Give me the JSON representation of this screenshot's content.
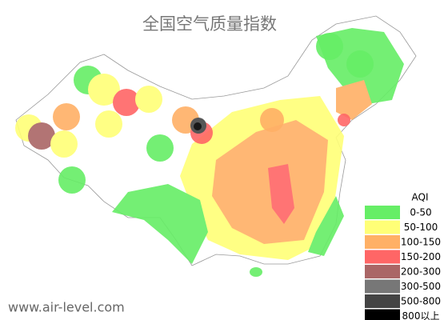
{
  "title": "全国空气质量指数",
  "legend": {
    "title": "AQI",
    "items": [
      {
        "label": "0-50",
        "color": "#66ee66"
      },
      {
        "label": "50-100",
        "color": "#ffff77"
      },
      {
        "label": "100-150",
        "color": "#ffb066"
      },
      {
        "label": "150-200",
        "color": "#ff6666"
      },
      {
        "label": "200-300",
        "color": "#aa6666"
      },
      {
        "label": "300-500",
        "color": "#777777"
      },
      {
        "label": "500-800",
        "color": "#444444"
      },
      {
        "label": "800以上",
        "color": "#000000"
      }
    ]
  },
  "watermark": "www.air-level.com"
}
